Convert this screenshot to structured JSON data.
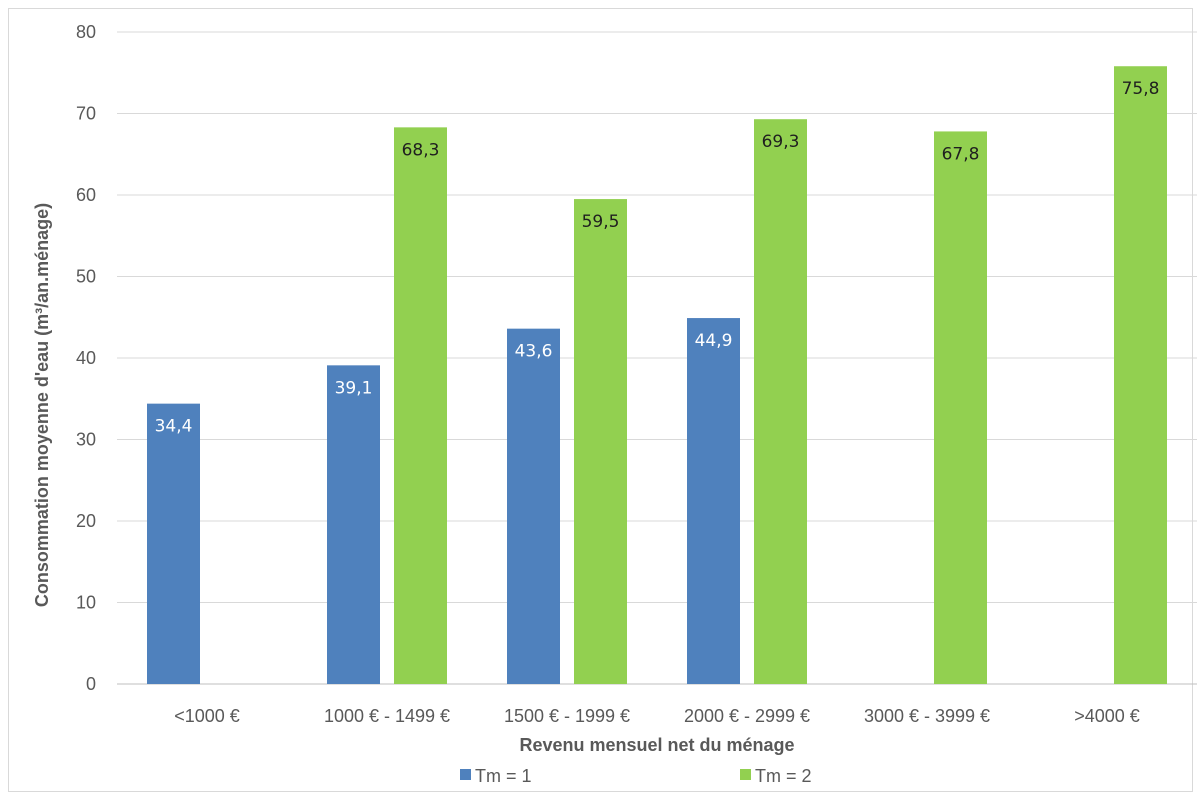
{
  "chart_data": {
    "type": "bar",
    "title": "",
    "xlabel": "Revenu mensuel net du ménage",
    "ylabel": "Consommation moyenne d'eau (m³/an.ménage)",
    "ylim": [
      0,
      80
    ],
    "yticks": [
      "0",
      "10",
      "20",
      "30",
      "40",
      "50",
      "60",
      "70",
      "80"
    ],
    "grid": true,
    "legend_position": "bottom",
    "categories": [
      "<1000 €",
      "1000 € - 1499 €",
      "1500 € - 1999 €",
      "2000 € - 2999 €",
      "3000 € - 3999 €",
      ">4000 €"
    ],
    "series": [
      {
        "name": "Tm = 1",
        "color": "#4f81bd",
        "label_color": "#ffffff",
        "values": [
          34.4,
          39.1,
          43.6,
          44.9,
          null,
          null
        ],
        "labels": [
          "34,4",
          "39,1",
          "43,6",
          "44,9",
          "",
          ""
        ]
      },
      {
        "name": "Tm = 2",
        "color": "#92d050",
        "label_color": "#1f1f1f",
        "values": [
          null,
          68.3,
          59.5,
          69.3,
          67.8,
          75.8
        ],
        "labels": [
          "",
          "68,3",
          "59,5",
          "69,3",
          "67,8",
          "75,8"
        ]
      }
    ]
  }
}
